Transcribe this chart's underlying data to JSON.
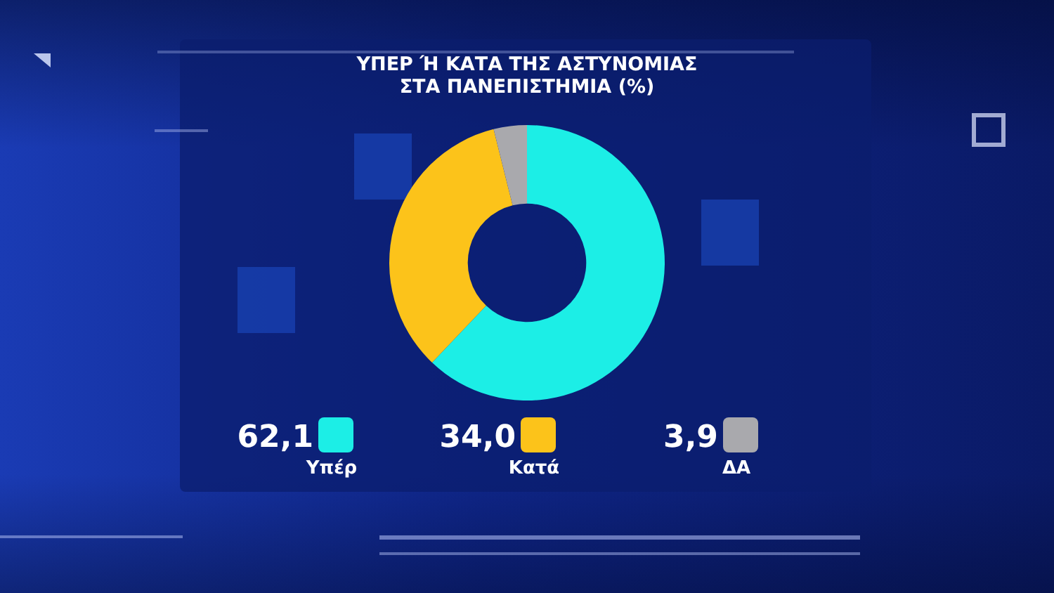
{
  "chart_data": {
    "type": "donut",
    "title": "ΥΠΕΡ Ή ΚΑΤΑ ΤΗΣ ΑΣΤΥΝΟΜΙΑΣ\nΣΤΑ ΠΑΝΕΠΙΣΤΗΜΙΑ (%)",
    "categories": [
      "Υπέρ",
      "Κατά",
      "ΔΑ"
    ],
    "values": [
      62.1,
      34.0,
      3.9
    ],
    "value_labels": [
      "62,1",
      "34,0",
      "3,9"
    ],
    "colors": [
      "#1ceee6",
      "#fcc31a",
      "#a9a9ad"
    ],
    "legend": "bottom"
  }
}
